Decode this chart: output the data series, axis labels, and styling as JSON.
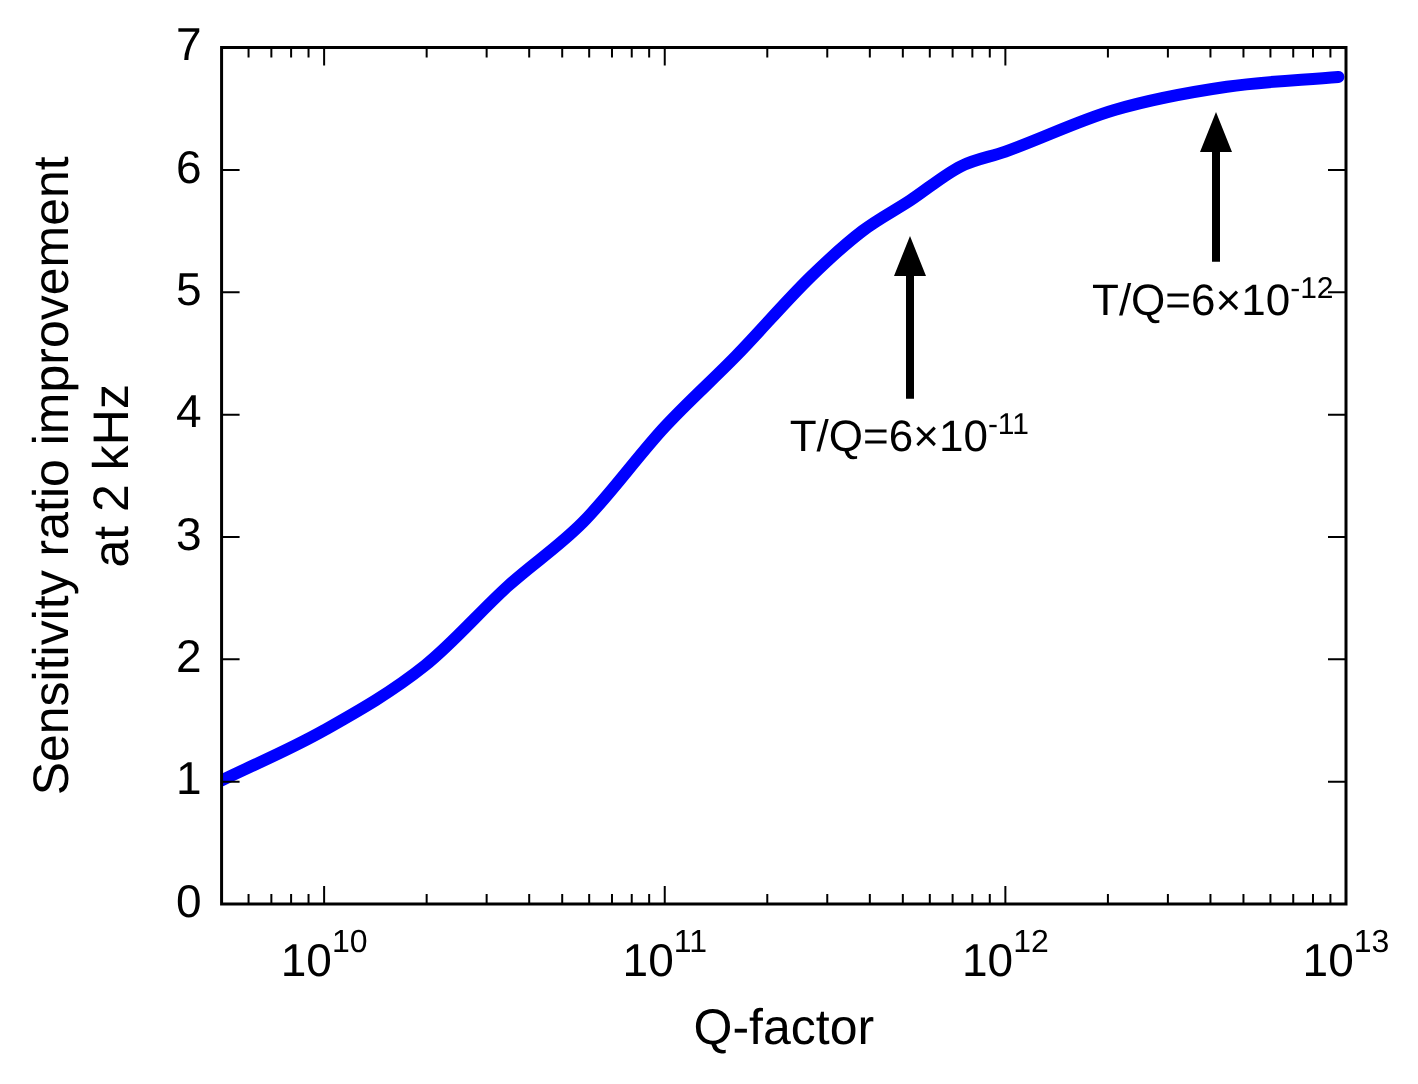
{
  "chart_data": {
    "type": "line",
    "xlabel": "Q-factor",
    "ylabel": "Sensitivity ratio improvement\nat 2 kHz",
    "log": "x",
    "grid": false,
    "legend": false,
    "marker": "none",
    "line_style": "solid",
    "x": [
      5000000000.0,
      10000000000.0,
      19800000000.0,
      34700000000.0,
      57500000000.0,
      100000000000.0,
      162000000000.0,
      269000000000.0,
      380000000000.0,
      525000000000.0,
      740000000000.0,
      1000000000000.0,
      2090000000000.0,
      4470000000000.0,
      9500000000000.0
    ],
    "series": [
      {
        "color": "#0000ff",
        "values": [
          1.01,
          1.42,
          1.95,
          2.6,
          3.12,
          3.9,
          4.48,
          5.13,
          5.5,
          5.75,
          6.03,
          6.15,
          6.49,
          6.68,
          6.76
        ]
      }
    ],
    "xlim": [
      5000000000.0,
      10000000000000.0
    ],
    "ylim": [
      0,
      7
    ],
    "yticks": [
      0,
      1,
      2,
      3,
      4,
      5,
      6,
      7
    ],
    "xticks": [
      {
        "value": 6000000000.0,
        "label": null
      },
      {
        "value": 7000000000.0,
        "label": null
      },
      {
        "value": 8000000000.0,
        "label": null
      },
      {
        "value": 9000000000.0,
        "label": null
      },
      {
        "value": 10000000000.0,
        "label": "10$^{10}$"
      },
      {
        "value": 20000000000.0,
        "label": null
      },
      {
        "value": 30000000000.0,
        "label": null
      },
      {
        "value": 40000000000.0,
        "label": null
      },
      {
        "value": 50000000000.0,
        "label": null
      },
      {
        "value": 60000000000.0,
        "label": null
      },
      {
        "value": 70000000000.0,
        "label": null
      },
      {
        "value": 80000000000.0,
        "label": null
      },
      {
        "value": 90000000000.0,
        "label": null
      },
      {
        "value": 100000000000.0,
        "label": "10$^{11}$"
      },
      {
        "value": 200000000000.0,
        "label": null
      },
      {
        "value": 300000000000.0,
        "label": null
      },
      {
        "value": 400000000000.0,
        "label": null
      },
      {
        "value": 500000000000.0,
        "label": null
      },
      {
        "value": 600000000000.0,
        "label": null
      },
      {
        "value": 700000000000.0,
        "label": null
      },
      {
        "value": 800000000000.0,
        "label": null
      },
      {
        "value": 900000000000.0,
        "label": null
      },
      {
        "value": 1000000000000.0,
        "label": "10$^{12}$"
      },
      {
        "value": 2000000000000.0,
        "label": null
      },
      {
        "value": 3000000000000.0,
        "label": null
      },
      {
        "value": 4000000000000.0,
        "label": null
      },
      {
        "value": 5000000000000.0,
        "label": null
      },
      {
        "value": 6000000000000.0,
        "label": null
      },
      {
        "value": 7000000000000.0,
        "label": null
      },
      {
        "value": 8000000000000.0,
        "label": null
      },
      {
        "value": 9000000000000.0,
        "label": null
      },
      {
        "value": 10000000000000.0,
        "label": "10$^{13}$"
      }
    ],
    "annotations": [
      "T/Q=6×10$^{-11}$",
      "T/Q=6×10$^{-12}$"
    ]
  }
}
